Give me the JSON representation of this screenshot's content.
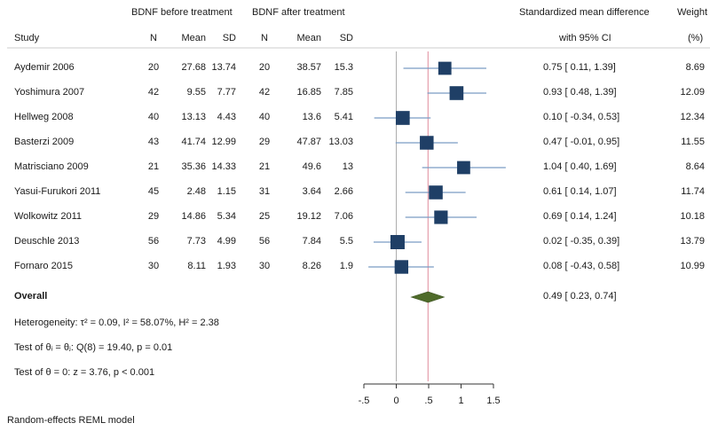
{
  "header": {
    "group_before": "BDNF before treatment",
    "group_after": "BDNF after treatment",
    "study": "Study",
    "n": "N",
    "mean": "Mean",
    "sd": "SD",
    "smd_line1": "Standardized mean difference",
    "smd_line2": "with 95% CI",
    "weight_line1": "Weight",
    "weight_line2": "(%)"
  },
  "chart_data": {
    "type": "forest",
    "xlim": [
      -0.5,
      1.5
    ],
    "x_ticks": [
      -0.5,
      0,
      0.5,
      1,
      1.5
    ],
    "x_tick_labels": [
      "-.5",
      "0",
      ".5",
      "1",
      "1.5"
    ],
    "null_line": 0,
    "overall_line": 0.49,
    "colors": {
      "marker": "#1f3f66",
      "ci": "#7a9cc4",
      "diamond": "#4f6b2a",
      "overall_line": "#e08a9a",
      "null_line": "#999999"
    },
    "studies": [
      {
        "study": "Aydemir 2006",
        "n1": "20",
        "mean1": "27.68",
        "sd1": "13.74",
        "n2": "20",
        "mean2": "38.57",
        "sd2": "15.3",
        "smd": 0.75,
        "lo": 0.11,
        "hi": 1.39,
        "ci_text": "0.75 [  0.11,  1.39]",
        "weight": "8.69"
      },
      {
        "study": "Yoshimura 2007",
        "n1": "42",
        "mean1": "9.55",
        "sd1": "7.77",
        "n2": "42",
        "mean2": "16.85",
        "sd2": "7.85",
        "smd": 0.93,
        "lo": 0.48,
        "hi": 1.39,
        "ci_text": "0.93 [  0.48,  1.39]",
        "weight": "12.09"
      },
      {
        "study": "Hellweg 2008",
        "n1": "40",
        "mean1": "13.13",
        "sd1": "4.43",
        "n2": "40",
        "mean2": "13.6",
        "sd2": "5.41",
        "smd": 0.1,
        "lo": -0.34,
        "hi": 0.53,
        "ci_text": "0.10 [ -0.34,  0.53]",
        "weight": "12.34"
      },
      {
        "study": "Basterzi 2009",
        "n1": "43",
        "mean1": "41.74",
        "sd1": "12.99",
        "n2": "29",
        "mean2": "47.87",
        "sd2": "13.03",
        "smd": 0.47,
        "lo": -0.01,
        "hi": 0.95,
        "ci_text": "0.47 [ -0.01,  0.95]",
        "weight": "11.55"
      },
      {
        "study": "Matrisciano 2009",
        "n1": "21",
        "mean1": "35.36",
        "sd1": "14.33",
        "n2": "21",
        "mean2": "49.6",
        "sd2": "13",
        "smd": 1.04,
        "lo": 0.4,
        "hi": 1.69,
        "ci_text": "1.04 [  0.40,  1.69]",
        "weight": "8.64"
      },
      {
        "study": "Yasui-Furukori 2011",
        "n1": "45",
        "mean1": "2.48",
        "sd1": "1.15",
        "n2": "31",
        "mean2": "3.64",
        "sd2": "2.66",
        "smd": 0.61,
        "lo": 0.14,
        "hi": 1.07,
        "ci_text": "0.61 [  0.14,  1.07]",
        "weight": "11.74"
      },
      {
        "study": "Wolkowitz 2011",
        "n1": "29",
        "mean1": "14.86",
        "sd1": "5.34",
        "n2": "25",
        "mean2": "19.12",
        "sd2": "7.06",
        "smd": 0.69,
        "lo": 0.14,
        "hi": 1.24,
        "ci_text": "0.69 [  0.14,  1.24]",
        "weight": "10.18"
      },
      {
        "study": "Deuschle 2013",
        "n1": "56",
        "mean1": "7.73",
        "sd1": "4.99",
        "n2": "56",
        "mean2": "7.84",
        "sd2": "5.5",
        "smd": 0.02,
        "lo": -0.35,
        "hi": 0.39,
        "ci_text": "0.02 [ -0.35,  0.39]",
        "weight": "13.79"
      },
      {
        "study": "Fornaro 2015",
        "n1": "30",
        "mean1": "8.11",
        "sd1": "1.93",
        "n2": "30",
        "mean2": "8.26",
        "sd2": "1.9",
        "smd": 0.08,
        "lo": -0.43,
        "hi": 0.58,
        "ci_text": "0.08 [ -0.43,  0.58]",
        "weight": "10.99"
      }
    ],
    "overall": {
      "label": "Overall",
      "smd": 0.49,
      "lo": 0.23,
      "hi": 0.74,
      "ci_text": "0.49 [  0.23,  0.74]"
    },
    "heterogeneity_text": "Heterogeneity: τ² = 0.09, I² = 58.07%, H² = 2.38",
    "test_homogeneity_text": "Test of θᵢ = θⱼ: Q(8) = 19.40, p = 0.01",
    "test_effect_text": "Test of θ = 0: z = 3.76, p < 0.001",
    "footnote": "Random-effects REML model"
  }
}
